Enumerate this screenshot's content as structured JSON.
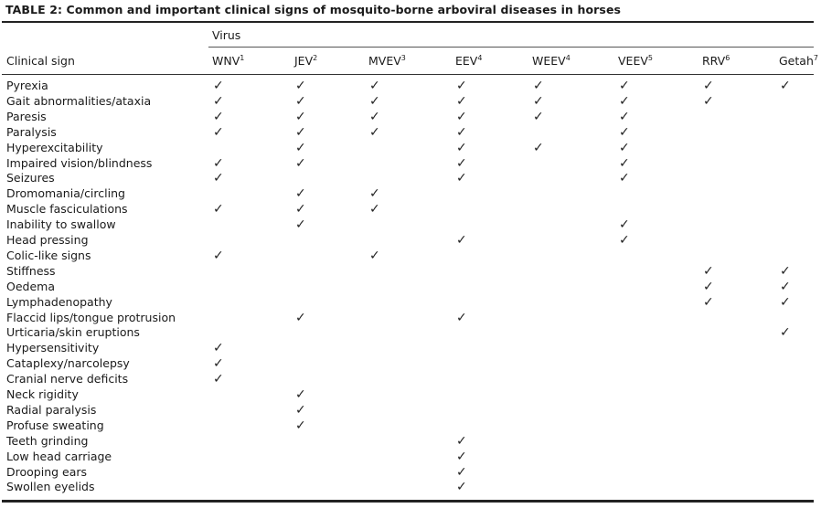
{
  "title": "TABLE 2: Common and important clinical signs of mosquito-borne arboviral diseases in horses",
  "group_header": "Virus",
  "row_header": "Clinical sign",
  "check_glyph": "✓",
  "columns": [
    {
      "label": "WNV",
      "sup": "1"
    },
    {
      "label": "JEV",
      "sup": "2"
    },
    {
      "label": "MVEV",
      "sup": "3"
    },
    {
      "label": "EEV",
      "sup": "4"
    },
    {
      "label": "WEEV",
      "sup": "4"
    },
    {
      "label": "VEEV",
      "sup": "5"
    },
    {
      "label": "RRV",
      "sup": "6"
    },
    {
      "label": "Getah",
      "sup": "7"
    }
  ],
  "rows": [
    {
      "sign": "Pyrexia",
      "checks": [
        1,
        1,
        1,
        1,
        1,
        1,
        1,
        1
      ]
    },
    {
      "sign": "Gait abnormalities/ataxia",
      "checks": [
        1,
        1,
        1,
        1,
        1,
        1,
        1,
        0
      ]
    },
    {
      "sign": "Paresis",
      "checks": [
        1,
        1,
        1,
        1,
        1,
        1,
        0,
        0
      ]
    },
    {
      "sign": "Paralysis",
      "checks": [
        1,
        1,
        1,
        1,
        0,
        1,
        0,
        0
      ]
    },
    {
      "sign": "Hyperexcitability",
      "checks": [
        0,
        1,
        0,
        1,
        1,
        1,
        0,
        0
      ]
    },
    {
      "sign": "Impaired vision/blindness",
      "checks": [
        1,
        1,
        0,
        1,
        0,
        1,
        0,
        0
      ]
    },
    {
      "sign": "Seizures",
      "checks": [
        1,
        0,
        0,
        1,
        0,
        1,
        0,
        0
      ]
    },
    {
      "sign": "Dromomania/circling",
      "checks": [
        0,
        1,
        1,
        0,
        0,
        0,
        0,
        0
      ]
    },
    {
      "sign": "Muscle fasciculations",
      "checks": [
        1,
        1,
        1,
        0,
        0,
        0,
        0,
        0
      ]
    },
    {
      "sign": "Inability to swallow",
      "checks": [
        0,
        1,
        0,
        0,
        0,
        1,
        0,
        0
      ]
    },
    {
      "sign": "Head pressing",
      "checks": [
        0,
        0,
        0,
        1,
        0,
        1,
        0,
        0
      ]
    },
    {
      "sign": "Colic-like signs",
      "checks": [
        1,
        0,
        1,
        0,
        0,
        0,
        0,
        0
      ]
    },
    {
      "sign": "Stiffness",
      "checks": [
        0,
        0,
        0,
        0,
        0,
        0,
        1,
        1
      ]
    },
    {
      "sign": "Oedema",
      "checks": [
        0,
        0,
        0,
        0,
        0,
        0,
        1,
        1
      ]
    },
    {
      "sign": "Lymphadenopathy",
      "checks": [
        0,
        0,
        0,
        0,
        0,
        0,
        1,
        1
      ]
    },
    {
      "sign": "Flaccid lips/tongue protrusion",
      "checks": [
        0,
        1,
        0,
        1,
        0,
        0,
        0,
        0
      ]
    },
    {
      "sign": "Urticaria/skin eruptions",
      "checks": [
        0,
        0,
        0,
        0,
        0,
        0,
        0,
        1
      ]
    },
    {
      "sign": "Hypersensitivity",
      "checks": [
        1,
        0,
        0,
        0,
        0,
        0,
        0,
        0
      ]
    },
    {
      "sign": "Cataplexy/narcolepsy",
      "checks": [
        1,
        0,
        0,
        0,
        0,
        0,
        0,
        0
      ]
    },
    {
      "sign": "Cranial nerve deficits",
      "checks": [
        1,
        0,
        0,
        0,
        0,
        0,
        0,
        0
      ]
    },
    {
      "sign": "Neck rigidity",
      "checks": [
        0,
        1,
        0,
        0,
        0,
        0,
        0,
        0
      ]
    },
    {
      "sign": "Radial paralysis",
      "checks": [
        0,
        1,
        0,
        0,
        0,
        0,
        0,
        0
      ]
    },
    {
      "sign": "Profuse sweating",
      "checks": [
        0,
        1,
        0,
        0,
        0,
        0,
        0,
        0
      ]
    },
    {
      "sign": "Teeth grinding",
      "checks": [
        0,
        0,
        0,
        1,
        0,
        0,
        0,
        0
      ]
    },
    {
      "sign": "Low head carriage",
      "checks": [
        0,
        0,
        0,
        1,
        0,
        0,
        0,
        0
      ]
    },
    {
      "sign": "Drooping ears",
      "checks": [
        0,
        0,
        0,
        1,
        0,
        0,
        0,
        0
      ]
    },
    {
      "sign": "Swollen eyelids",
      "checks": [
        0,
        0,
        0,
        1,
        0,
        0,
        0,
        0
      ]
    }
  ]
}
